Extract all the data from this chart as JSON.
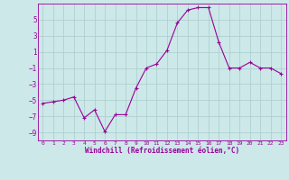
{
  "x": [
    0,
    1,
    2,
    3,
    4,
    5,
    6,
    7,
    8,
    9,
    10,
    11,
    12,
    13,
    14,
    15,
    16,
    17,
    18,
    19,
    20,
    21,
    22,
    23
  ],
  "y": [
    -5.4,
    -5.2,
    -5.0,
    -4.6,
    -7.2,
    -6.2,
    -8.9,
    -6.8,
    -6.8,
    -3.5,
    -1.0,
    -0.5,
    1.2,
    4.6,
    6.2,
    6.5,
    6.5,
    2.2,
    -1.0,
    -1.0,
    -0.3,
    -1.0,
    -1.0,
    -1.7
  ],
  "line_color": "#990099",
  "marker": "+",
  "marker_color": "#990099",
  "bg_color": "#cce8e8",
  "grid_color": "#aacccc",
  "xlabel": "Windchill (Refroidissement éolien,°C)",
  "xlabel_color": "#990099",
  "tick_color": "#990099",
  "ylim": [
    -10,
    7
  ],
  "yticks": [
    -9,
    -7,
    -5,
    -3,
    -1,
    1,
    3,
    5
  ],
  "xticks": [
    0,
    1,
    2,
    3,
    4,
    5,
    6,
    7,
    8,
    9,
    10,
    11,
    12,
    13,
    14,
    15,
    16,
    17,
    18,
    19,
    20,
    21,
    22,
    23
  ],
  "spine_color": "#990099"
}
